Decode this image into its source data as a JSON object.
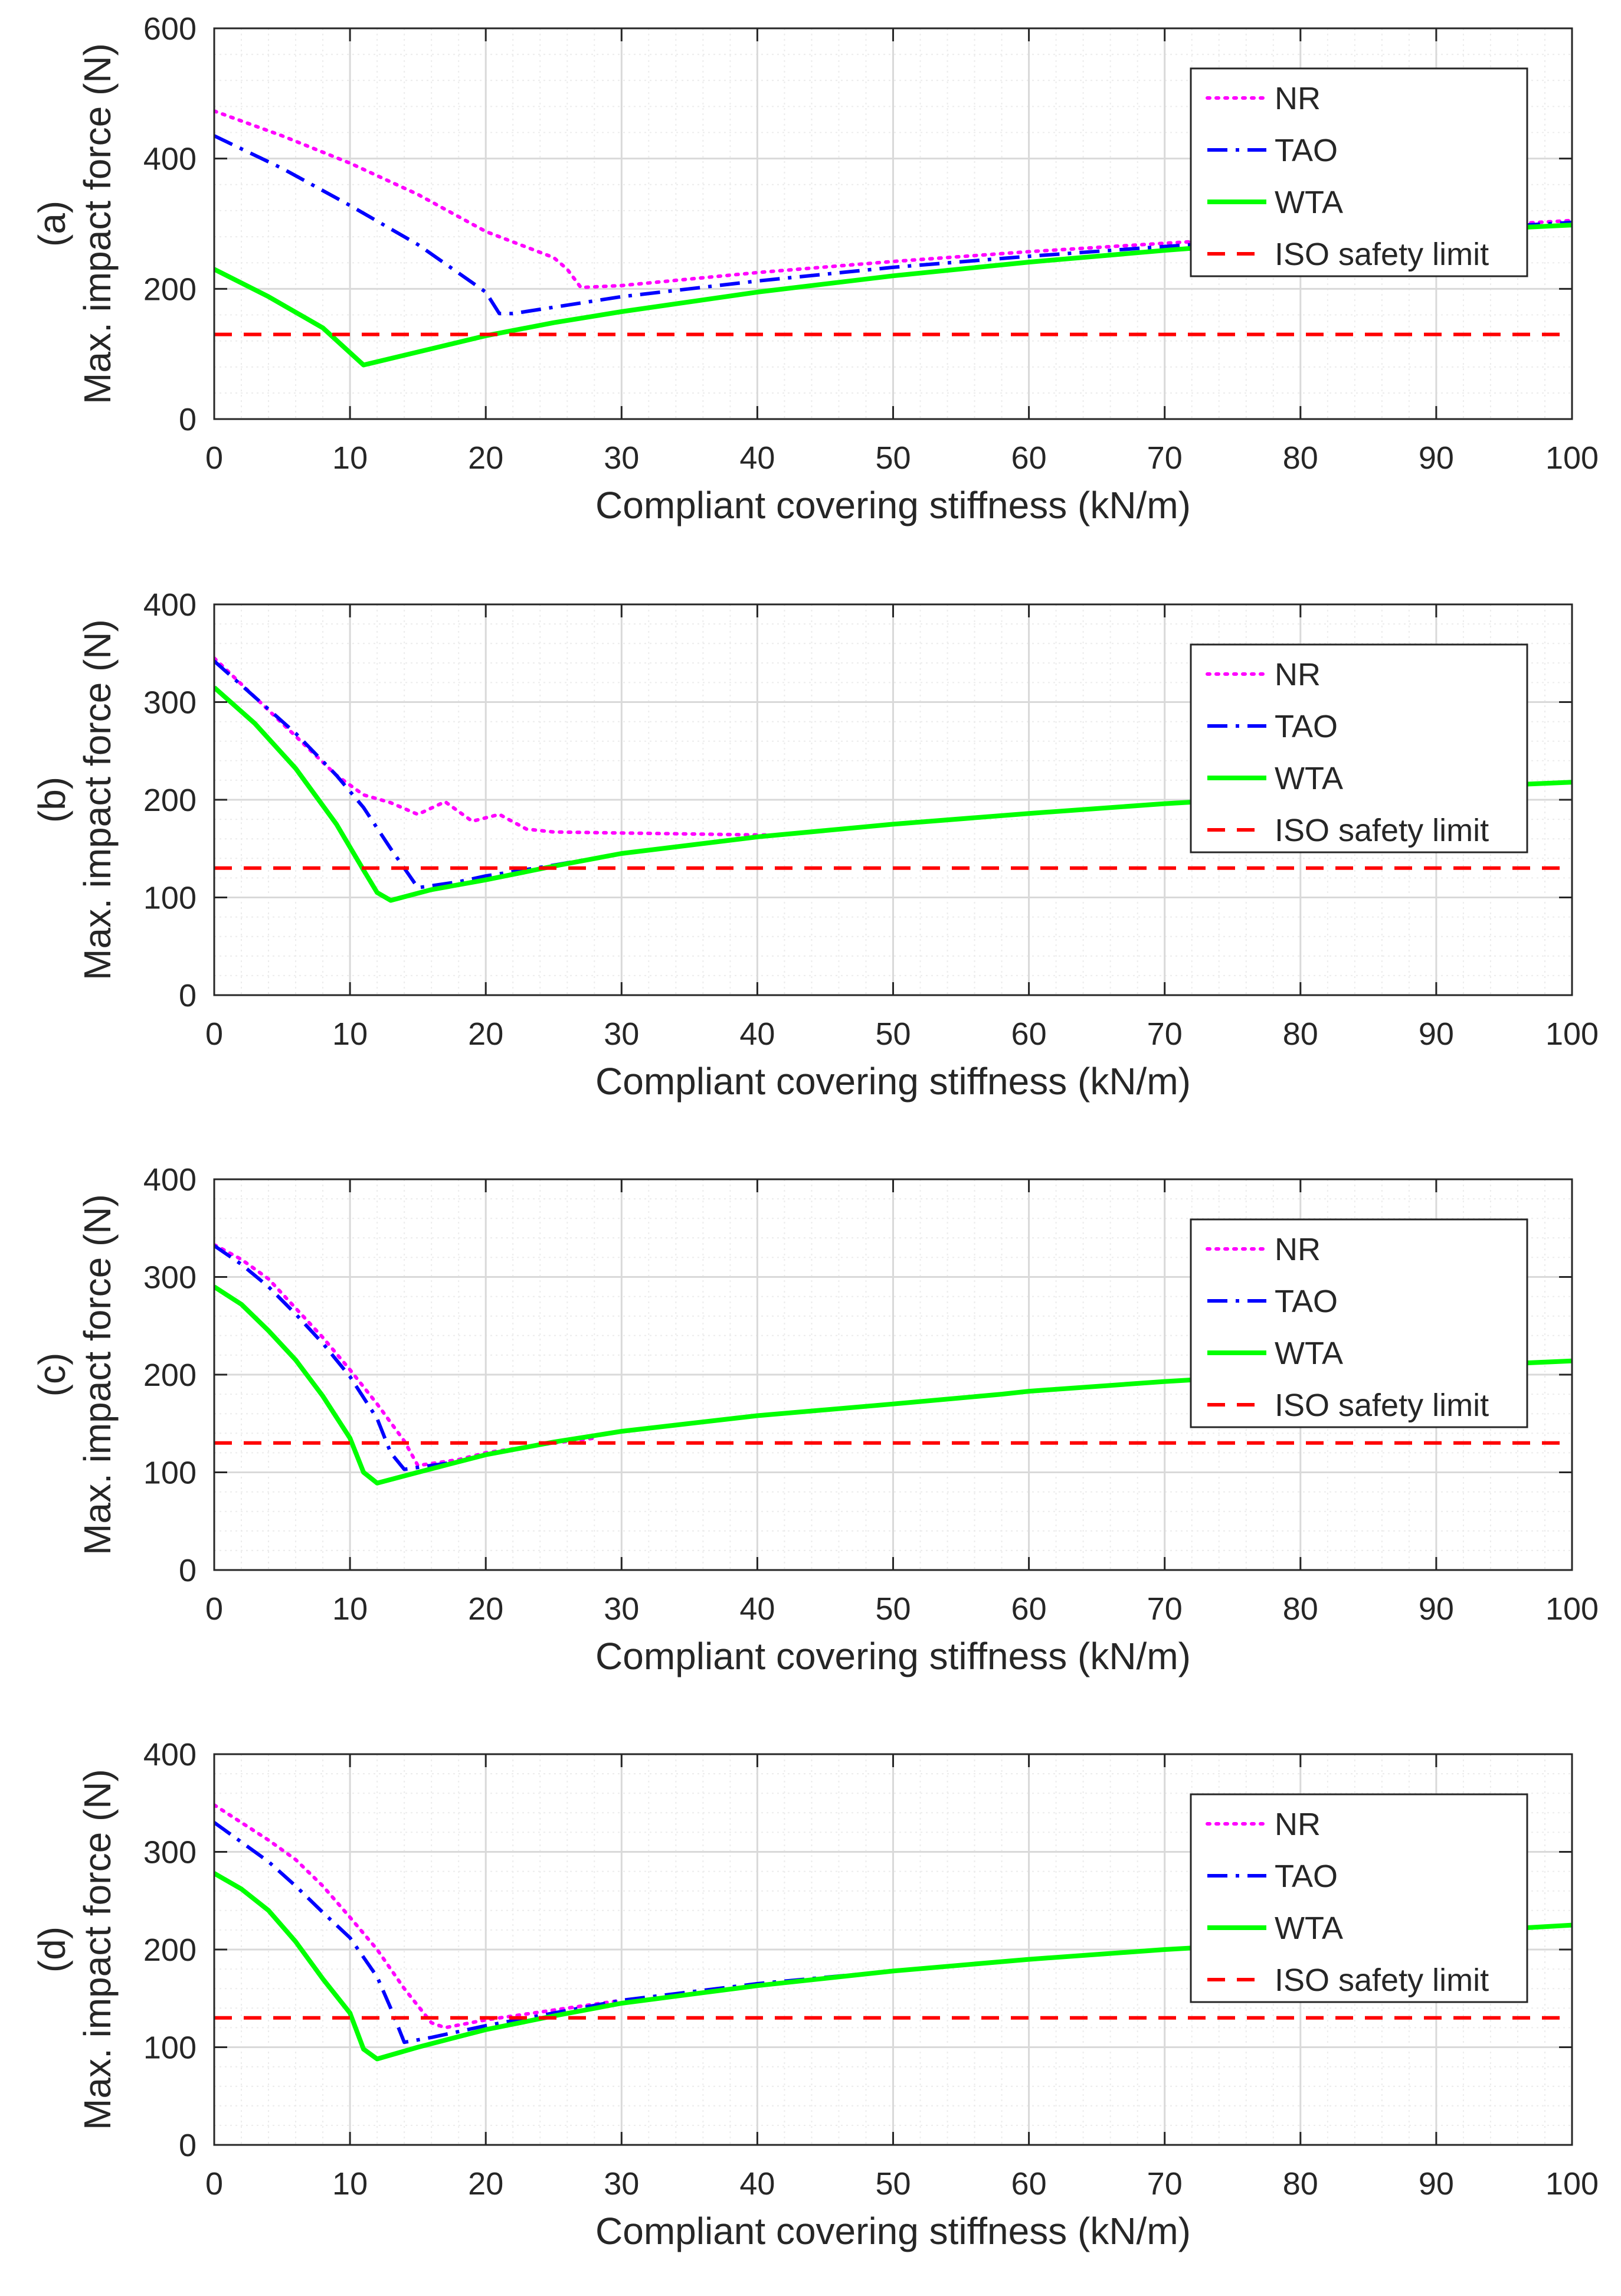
{
  "colors": {
    "NR": "#ff00ff",
    "TAO": "#0000ff",
    "WTA": "#00ff00",
    "ISO": "#ff0000",
    "grid_major": "#d9d9d9",
    "grid_minor": "#ececec",
    "axis": "#262626"
  },
  "chart_data": [
    {
      "type": "line",
      "panel_label": "(a)",
      "xlabel": "Compliant covering stiffness (kN/m)",
      "ylabel": "Max. impact force (N)",
      "xlim": [
        0,
        100
      ],
      "ylim": [
        0,
        600
      ],
      "xticks": [
        0,
        10,
        20,
        30,
        40,
        50,
        60,
        70,
        80,
        90,
        100
      ],
      "yticks": [
        0,
        200,
        400,
        600
      ],
      "grid": true,
      "legend_position": "top-right",
      "legend": [
        "NR",
        "TAO",
        "WTA",
        "ISO safety limit"
      ],
      "series": [
        {
          "name": "NR",
          "style": "dotted",
          "x": [
            0,
            5,
            10,
            15,
            20,
            22,
            25,
            26,
            27,
            30,
            40,
            50,
            60,
            70,
            80,
            90,
            100
          ],
          "y": [
            473,
            435,
            393,
            345,
            288,
            272,
            248,
            230,
            202,
            205,
            225,
            242,
            257,
            270,
            282,
            293,
            305
          ]
        },
        {
          "name": "TAO",
          "style": "dashdot",
          "x": [
            0,
            5,
            10,
            15,
            20,
            21,
            22,
            30,
            40,
            50,
            60,
            70,
            80,
            90,
            100
          ],
          "y": [
            435,
            385,
            328,
            268,
            195,
            162,
            162,
            188,
            212,
            233,
            250,
            265,
            278,
            290,
            302
          ]
        },
        {
          "name": "WTA",
          "style": "solid",
          "x": [
            0,
            4,
            8,
            11,
            15,
            20,
            25,
            30,
            40,
            50,
            60,
            70,
            80,
            90,
            100
          ],
          "y": [
            230,
            188,
            140,
            83,
            103,
            128,
            148,
            165,
            195,
            220,
            241,
            259,
            275,
            288,
            298
          ]
        },
        {
          "name": "ISO safety limit",
          "style": "dashed",
          "x": [
            0,
            100
          ],
          "y": [
            130,
            130
          ]
        }
      ]
    },
    {
      "type": "line",
      "panel_label": "(b)",
      "xlabel": "Compliant covering stiffness (kN/m)",
      "ylabel": "Max. impact force (N)",
      "xlim": [
        0,
        100
      ],
      "ylim": [
        0,
        400
      ],
      "xticks": [
        0,
        10,
        20,
        30,
        40,
        50,
        60,
        70,
        80,
        90,
        100
      ],
      "yticks": [
        0,
        100,
        200,
        300,
        400
      ],
      "grid": true,
      "legend_position": "top-right",
      "legend": [
        "NR",
        "TAO",
        "WTA",
        "ISO safety limit"
      ],
      "series": [
        {
          "name": "NR",
          "style": "dotted",
          "x": [
            0,
            3,
            6,
            9,
            11,
            13,
            15,
            17,
            19,
            21,
            23,
            25,
            30,
            35,
            40,
            42
          ],
          "y": [
            345,
            305,
            265,
            225,
            205,
            197,
            185,
            198,
            178,
            185,
            170,
            167,
            166,
            165,
            164,
            164
          ]
        },
        {
          "name": "TAO",
          "style": "dashdot",
          "x": [
            0,
            3,
            6,
            9,
            11,
            13,
            15,
            18,
            20,
            25,
            30
          ],
          "y": [
            342,
            305,
            268,
            225,
            192,
            150,
            110,
            116,
            122,
            133,
            145
          ]
        },
        {
          "name": "WTA",
          "style": "solid",
          "x": [
            0,
            3,
            6,
            9,
            11,
            12,
            13,
            16,
            20,
            25,
            30,
            40,
            50,
            60,
            70,
            80,
            90,
            100
          ],
          "y": [
            315,
            278,
            232,
            175,
            128,
            105,
            97,
            108,
            118,
            132,
            145,
            162,
            175,
            186,
            196,
            204,
            212,
            218
          ]
        },
        {
          "name": "ISO safety limit",
          "style": "dashed",
          "x": [
            0,
            100
          ],
          "y": [
            130,
            130
          ]
        }
      ]
    },
    {
      "type": "line",
      "panel_label": "(c)",
      "xlabel": "Compliant covering stiffness (kN/m)",
      "ylabel": "Max. impact force (N)",
      "xlim": [
        0,
        100
      ],
      "ylim": [
        0,
        400
      ],
      "xticks": [
        0,
        10,
        20,
        30,
        40,
        50,
        60,
        70,
        80,
        90,
        100
      ],
      "yticks": [
        0,
        100,
        200,
        300,
        400
      ],
      "grid": true,
      "legend_position": "top-right",
      "legend": [
        "NR",
        "TAO",
        "WTA",
        "ISO safety limit"
      ],
      "series": [
        {
          "name": "NR",
          "style": "dotted",
          "x": [
            0,
            2,
            4,
            6,
            8,
            10,
            12,
            14,
            15,
            18,
            20,
            25,
            28
          ],
          "y": [
            333,
            318,
            298,
            268,
            238,
            205,
            170,
            132,
            107,
            113,
            120,
            130,
            135
          ]
        },
        {
          "name": "TAO",
          "style": "dashdot",
          "x": [
            0,
            2,
            4,
            6,
            8,
            10,
            12,
            13,
            14,
            18,
            20,
            25,
            28
          ],
          "y": [
            332,
            313,
            290,
            262,
            232,
            198,
            155,
            120,
            103,
            111,
            118,
            131,
            137
          ]
        },
        {
          "name": "WTA",
          "style": "solid",
          "x": [
            0,
            2,
            4,
            6,
            8,
            10,
            11,
            12,
            15,
            20,
            25,
            30,
            40,
            50,
            58,
            60,
            70,
            80,
            90,
            100
          ],
          "y": [
            290,
            272,
            245,
            215,
            178,
            135,
            100,
            89,
            100,
            118,
            131,
            142,
            158,
            170,
            180,
            183,
            193,
            201,
            208,
            214
          ]
        },
        {
          "name": "ISO safety limit",
          "style": "dashed",
          "x": [
            0,
            100
          ],
          "y": [
            130,
            130
          ]
        }
      ]
    },
    {
      "type": "line",
      "panel_label": "(d)",
      "xlabel": "Compliant covering stiffness (kN/m)",
      "ylabel": "Max. impact force (N)",
      "xlim": [
        0,
        100
      ],
      "ylim": [
        0,
        400
      ],
      "xticks": [
        0,
        10,
        20,
        30,
        40,
        50,
        60,
        70,
        80,
        90,
        100
      ],
      "yticks": [
        0,
        100,
        200,
        300,
        400
      ],
      "grid": true,
      "legend_position": "top-right",
      "legend": [
        "NR",
        "TAO",
        "WTA",
        "ISO safety limit"
      ],
      "series": [
        {
          "name": "NR",
          "style": "dotted",
          "x": [
            0,
            2,
            4,
            6,
            8,
            10,
            12,
            14,
            16,
            17,
            20,
            25,
            30
          ],
          "y": [
            348,
            330,
            312,
            292,
            265,
            233,
            200,
            160,
            125,
            120,
            128,
            138,
            148
          ]
        },
        {
          "name": "TAO",
          "style": "dashdot",
          "x": [
            0,
            2,
            4,
            6,
            8,
            10,
            12,
            13,
            14,
            16,
            20,
            25,
            30,
            40,
            50
          ],
          "y": [
            330,
            310,
            290,
            265,
            238,
            212,
            172,
            140,
            105,
            110,
            122,
            135,
            148,
            165,
            178
          ]
        },
        {
          "name": "WTA",
          "style": "solid",
          "x": [
            0,
            2,
            4,
            6,
            8,
            10,
            11,
            12,
            15,
            20,
            25,
            30,
            40,
            50,
            60,
            70,
            80,
            90,
            100
          ],
          "y": [
            278,
            262,
            240,
            208,
            170,
            135,
            98,
            88,
            100,
            118,
            132,
            145,
            163,
            178,
            190,
            200,
            208,
            217,
            225
          ]
        },
        {
          "name": "ISO safety limit",
          "style": "dashed",
          "x": [
            0,
            100
          ],
          "y": [
            130,
            130
          ]
        }
      ]
    }
  ]
}
